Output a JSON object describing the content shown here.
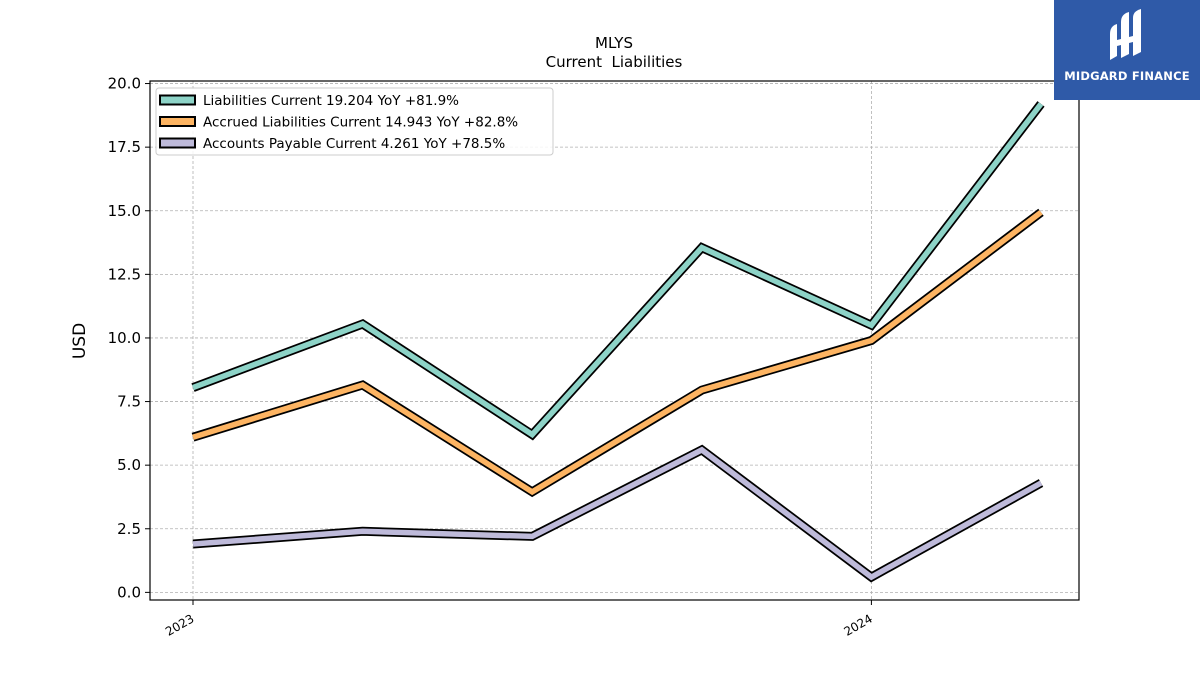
{
  "brand": {
    "name": "MIDGARD FINANCE",
    "bg_color": "#2f5aa8"
  },
  "chart_data": {
    "type": "line",
    "title": "MLYS",
    "subtitle": "Current  Liabilities",
    "ylabel": "USD",
    "xlabel": "",
    "x": [
      "2023-01",
      "2023-04",
      "2023-07",
      "2023-10",
      "2024-01",
      "2024-04"
    ],
    "x_tick_labels": [
      {
        "at": "2023-01",
        "label": "2023"
      },
      {
        "at": "2024-01",
        "label": "2024"
      }
    ],
    "ylim": [
      -0.3,
      20.1
    ],
    "yticks": [
      "0.0",
      "2.5",
      "5.0",
      "7.5",
      "10.0",
      "12.5",
      "15.0",
      "17.5",
      "20.0"
    ],
    "grid": true,
    "legend_position": "top-left",
    "series": [
      {
        "name": "Liabilities Current",
        "legend": "Liabilities Current  19.204 YoY +81.9%",
        "color": "#8dd3c7",
        "values": [
          8.05,
          10.55,
          6.2,
          13.55,
          10.5,
          19.2
        ]
      },
      {
        "name": "Accrued Liabilities Current",
        "legend": "Accrued Liabilities Current  14.943 YoY +82.8%",
        "color": "#fdb462",
        "values": [
          6.1,
          8.15,
          3.95,
          7.95,
          9.9,
          14.94
        ]
      },
      {
        "name": "Accounts Payable Current",
        "legend": "Accounts Payable Current  4.261 YoY +78.5%",
        "color": "#bebada",
        "values": [
          1.9,
          2.4,
          2.2,
          5.6,
          0.6,
          4.3
        ]
      }
    ]
  }
}
